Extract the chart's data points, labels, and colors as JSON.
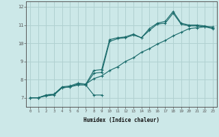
{
  "title": "",
  "xlabel": "Humidex (Indice chaleur)",
  "bg_color": "#cce8e8",
  "grid_color": "#b0d0d0",
  "line_color": "#1a6b6b",
  "xlim": [
    -0.5,
    23.5
  ],
  "ylim": [
    6.5,
    12.3
  ],
  "xticks": [
    0,
    1,
    2,
    3,
    4,
    5,
    6,
    7,
    8,
    9,
    10,
    11,
    12,
    13,
    14,
    15,
    16,
    17,
    18,
    19,
    20,
    21,
    22,
    23
  ],
  "yticks": [
    7,
    8,
    9,
    10,
    11,
    12
  ],
  "lines": [
    {
      "x": [
        0,
        1,
        2,
        3,
        4,
        5,
        6,
        7,
        8,
        9,
        10,
        11,
        12,
        13,
        14,
        15,
        16,
        17,
        18,
        19,
        20,
        21,
        22,
        23
      ],
      "y": [
        7.0,
        7.0,
        7.15,
        7.2,
        7.55,
        7.6,
        7.75,
        7.75,
        8.05,
        8.2,
        8.5,
        8.7,
        9.0,
        9.2,
        9.5,
        9.7,
        9.95,
        10.15,
        10.4,
        10.6,
        10.8,
        10.85,
        10.9,
        10.9
      ]
    },
    {
      "x": [
        0,
        1,
        2,
        3,
        4,
        5,
        6,
        7,
        8,
        9,
        10,
        11,
        12,
        13,
        14,
        15,
        16,
        17,
        18,
        19,
        20,
        21,
        22,
        23
      ],
      "y": [
        7.0,
        7.0,
        7.15,
        7.2,
        7.6,
        7.65,
        7.8,
        7.75,
        8.5,
        8.55,
        10.2,
        10.3,
        10.35,
        10.5,
        10.3,
        10.8,
        11.1,
        11.2,
        11.75,
        11.1,
        11.0,
        11.0,
        10.95,
        10.85
      ]
    },
    {
      "x": [
        0,
        1,
        2,
        3,
        4,
        5,
        6,
        7,
        8,
        9,
        10,
        11,
        12,
        13,
        14,
        15,
        16,
        17,
        18,
        19,
        20,
        21,
        22,
        23
      ],
      "y": [
        7.0,
        7.0,
        7.1,
        7.15,
        7.55,
        7.6,
        7.7,
        7.7,
        8.35,
        8.4,
        10.1,
        10.25,
        10.3,
        10.45,
        10.3,
        10.7,
        11.05,
        11.1,
        11.65,
        11.05,
        10.95,
        10.95,
        10.9,
        10.8
      ]
    },
    {
      "x": [
        7,
        8,
        9
      ],
      "y": [
        7.7,
        7.15,
        7.15
      ]
    }
  ]
}
